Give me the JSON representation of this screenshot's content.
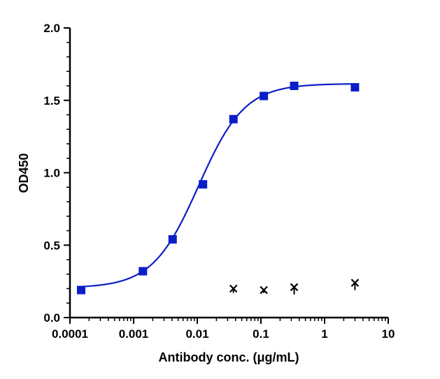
{
  "chart_data": {
    "type": "scatter",
    "title": "",
    "xlabel": "Antibody conc. (μg/mL)",
    "ylabel": "OD450",
    "xscale": "log",
    "xlim": [
      0.0001,
      10
    ],
    "ylim": [
      0.0,
      2.0
    ],
    "x_ticks": [
      "0.0001",
      "0.001",
      "0.01",
      "0.1",
      "1",
      "10"
    ],
    "y_ticks": [
      "0.0",
      "0.5",
      "1.0",
      "1.5",
      "2.0"
    ],
    "grid": false,
    "legend": "none",
    "series": [
      {
        "marker": "square",
        "color": "#0a1ec8",
        "fit": "4PL",
        "x": [
          0.00015,
          0.0014,
          0.0041,
          0.0123,
          0.037,
          0.111,
          0.333,
          3.0
        ],
        "y": [
          0.19,
          0.32,
          0.54,
          0.92,
          1.37,
          1.53,
          1.6,
          1.59
        ]
      },
      {
        "marker": "x",
        "color": "#000000",
        "x": [
          0.037,
          0.111,
          0.333,
          3.0
        ],
        "y": [
          0.2,
          0.19,
          0.21,
          0.24
        ],
        "error_low": [
          0.17,
          0.17,
          0.16,
          0.19
        ],
        "error_high": [
          0.2,
          0.19,
          0.21,
          0.24
        ]
      }
    ],
    "fit_curve": {
      "bottom": 0.205,
      "top": 1.615,
      "ec50": 0.0105,
      "hill": 1.2
    }
  }
}
